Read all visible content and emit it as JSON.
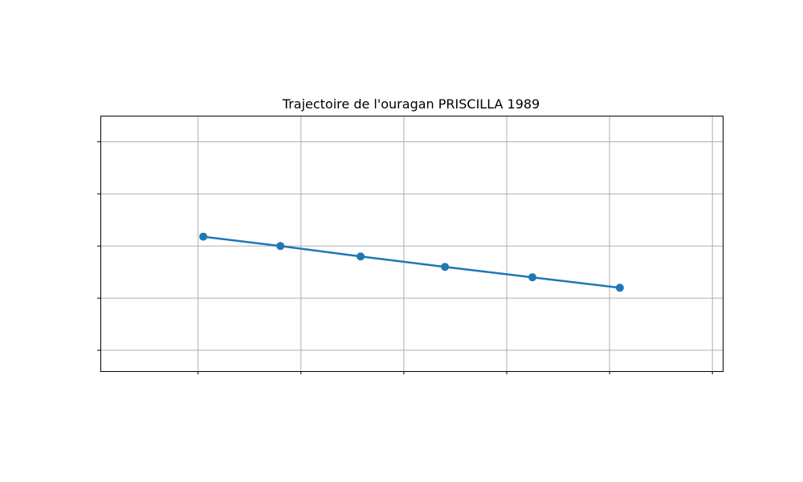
{
  "chart_data": {
    "type": "line",
    "title": "Trajectoire de l'ouragan PRISCILLA 1989",
    "xlabel": "",
    "ylabel": "",
    "xlim": [
      -0.95,
      5.1
    ],
    "ylim": [
      -2.4,
      2.5
    ],
    "x_gridlines": [
      0,
      1,
      2,
      3,
      4,
      5
    ],
    "y_gridlines": [
      -2,
      -1,
      0,
      1,
      2
    ],
    "grid": true,
    "series": [
      {
        "x": [
          0.05,
          0.8,
          1.58,
          2.4,
          3.25,
          4.1
        ],
        "y": [
          0.18,
          0.0,
          -0.2,
          -0.4,
          -0.6,
          -0.8
        ]
      }
    ],
    "colors": {
      "line": "#1f77b4",
      "marker": "#1f77b4",
      "grid": "#b0b0b0",
      "frame": "#000000"
    }
  }
}
